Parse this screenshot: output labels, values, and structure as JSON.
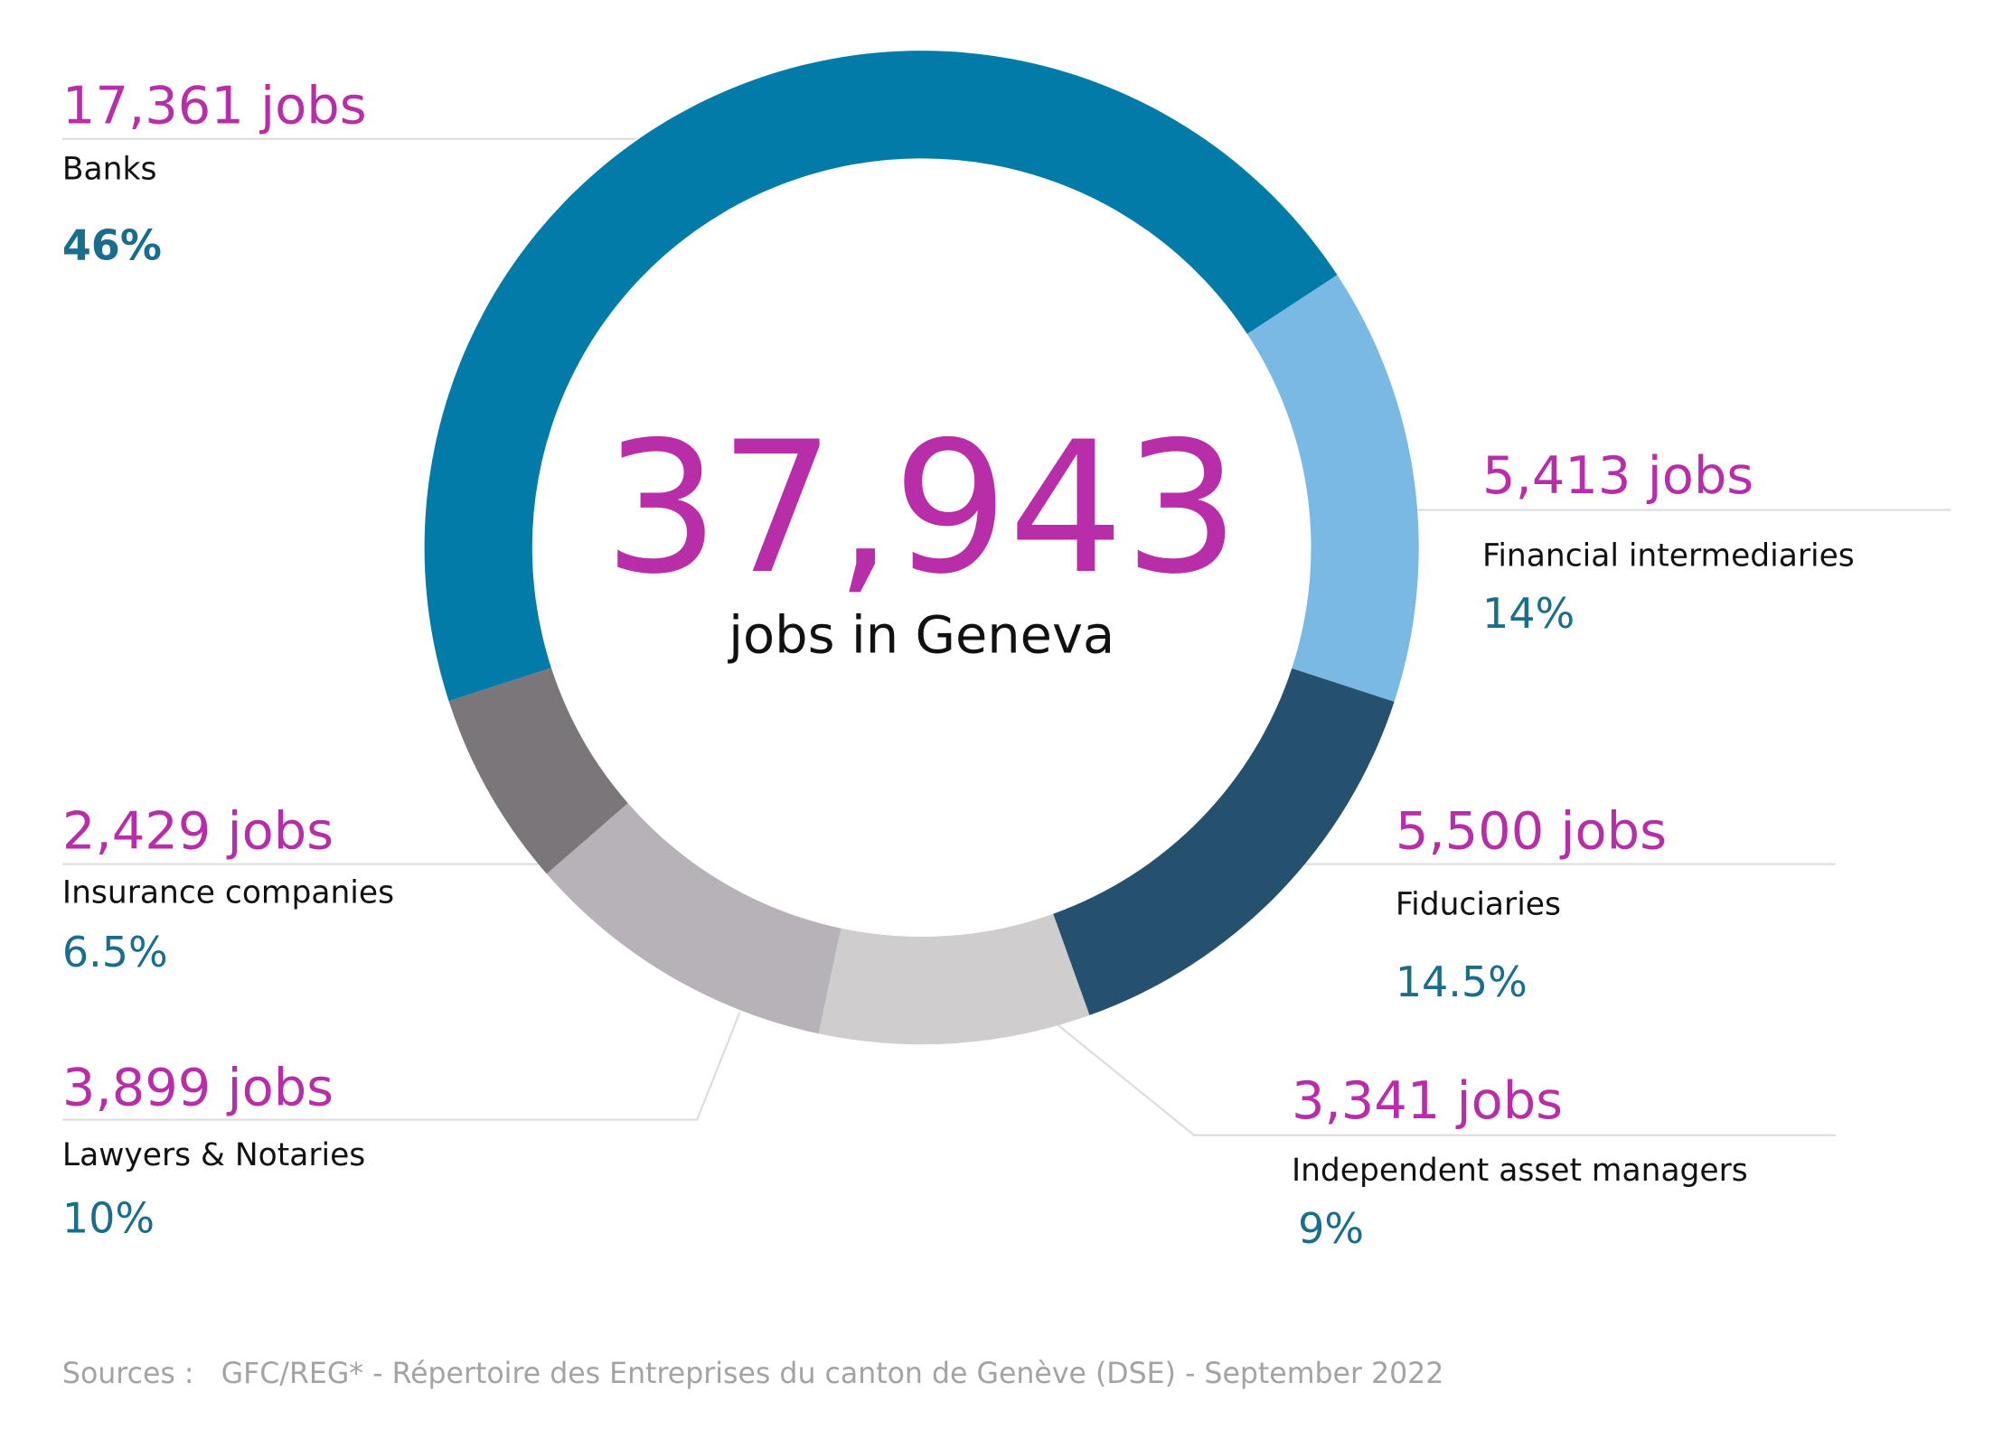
{
  "chart_data": {
    "type": "donut",
    "total": {
      "value": 37943,
      "label": "37,943"
    },
    "total_caption": "jobs in Geneva",
    "categories": [
      "Banks",
      "Financial intermediaries",
      "Fiduciaries",
      "Independent asset managers",
      "Lawyers & Notaries",
      "Insurance companies"
    ],
    "values": [
      17361,
      5413,
      5500,
      3341,
      3899,
      2429
    ],
    "value_labels": [
      "17,361 jobs",
      "5,413 jobs",
      "5,500 jobs",
      "3,341 jobs",
      "3,899 jobs",
      "2,429 jobs"
    ],
    "percents": [
      46,
      14,
      14.5,
      9,
      10,
      6.5
    ],
    "percent_labels": [
      "46%",
      "14%",
      "14.5%",
      "9%",
      "10%",
      "6.5%"
    ],
    "colors": [
      "#027ba8",
      "#7ab9e3",
      "#25506e",
      "#cfcdce",
      "#b7b2b7",
      "#7a767a"
    ],
    "source": "Sources :   GFC/REG* - Répertoire des Entreprises du canton de Genève (DSE) - September 2022"
  }
}
